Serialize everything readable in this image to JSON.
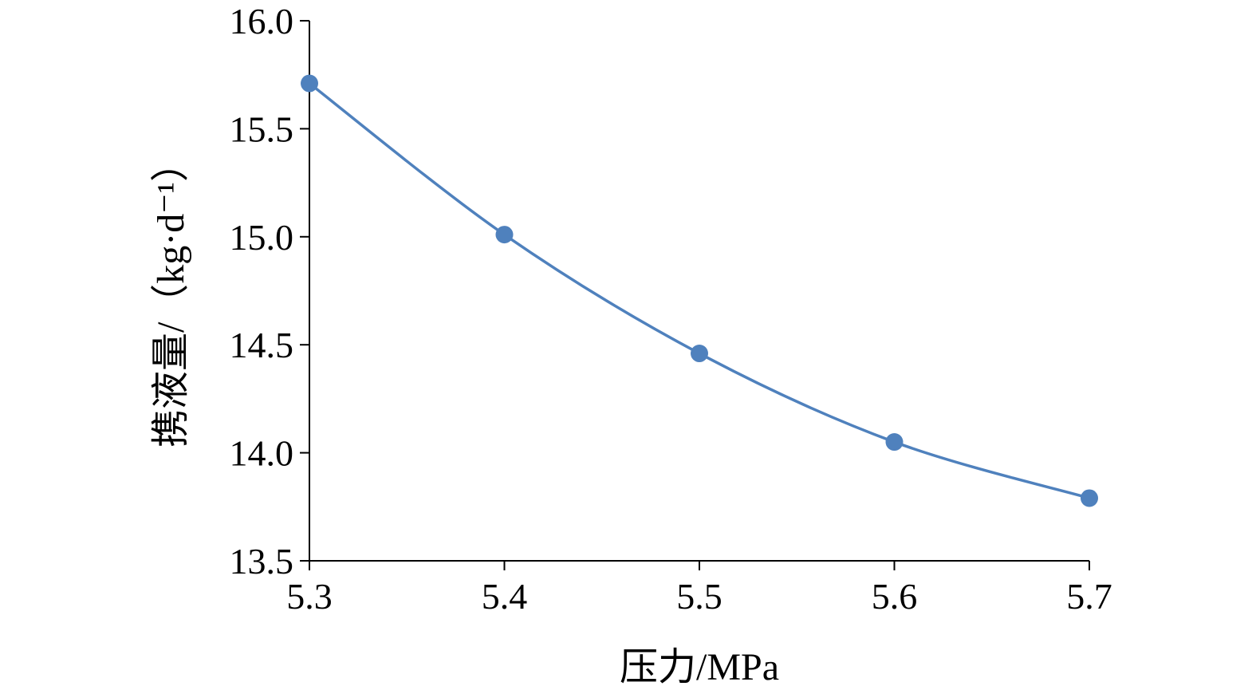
{
  "chart_data": {
    "type": "line",
    "title": "",
    "xlabel": "压力/MPa",
    "ylabel": "携液量/（kg·d⁻¹）",
    "x": [
      5.3,
      5.4,
      5.5,
      5.6,
      5.7
    ],
    "series": [
      {
        "values": [
          15.71,
          15.01,
          14.46,
          14.05,
          13.79
        ],
        "color": "#4f81bd",
        "marker": "circle",
        "smooth": true
      }
    ],
    "xlim": [
      5.3,
      5.7
    ],
    "ylim": [
      13.5,
      16.0
    ],
    "xticks": [
      5.3,
      5.4,
      5.5,
      5.6,
      5.7
    ],
    "xtick_labels": [
      "5.3",
      "5.4",
      "5.5",
      "5.6",
      "5.7"
    ],
    "yticks": [
      13.5,
      14.0,
      14.5,
      15.0,
      15.5,
      16.0
    ],
    "ytick_labels": [
      "13.5",
      "14.0",
      "14.5",
      "15.0",
      "15.5",
      "16.0"
    ],
    "grid": false,
    "legend": false
  }
}
